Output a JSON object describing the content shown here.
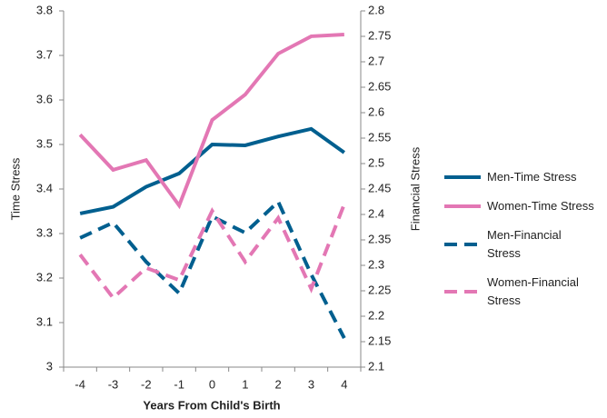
{
  "chart_data": {
    "type": "line",
    "x_label": "Years From Child's Birth",
    "y_label": "Time Stress",
    "y2_label": "Financial Stress",
    "categories": [
      "-4",
      "-3",
      "-2",
      "-1",
      "0",
      "1",
      "2",
      "3",
      "4"
    ],
    "ylim": [
      3,
      3.8
    ],
    "yticks": [
      3,
      3.1,
      3.2,
      3.3,
      3.4,
      3.5,
      3.6,
      3.7,
      3.8
    ],
    "y2lim": [
      2.1,
      2.8
    ],
    "y2ticks": [
      2.1,
      2.15,
      2.2,
      2.25,
      2.3,
      2.35,
      2.4,
      2.45,
      2.5,
      2.55,
      2.6,
      2.65,
      2.7,
      2.75,
      2.8
    ],
    "series": [
      {
        "name": "Men-Time Stress",
        "color": "#005f8f",
        "dash": false,
        "values": [
          3.345,
          3.36,
          3.405,
          3.435,
          3.5,
          3.498,
          3.518,
          3.535,
          3.482
        ]
      },
      {
        "name": "Women-Time Stress",
        "color": "#e377b4",
        "dash": false,
        "values": [
          3.522,
          3.443,
          3.465,
          3.363,
          3.555,
          3.612,
          3.704,
          3.743,
          3.747
        ]
      },
      {
        "name": "Men-Financial Stress",
        "color": "#005f8f",
        "dash": true,
        "axis": "y2",
        "values": [
          2.354,
          2.384,
          2.307,
          2.245,
          2.396,
          2.364,
          2.425,
          2.282,
          2.157
        ]
      },
      {
        "name": "Women-Financial Stress",
        "color": "#e377b4",
        "dash": true,
        "axis": "y2",
        "values": [
          2.321,
          2.236,
          2.295,
          2.271,
          2.407,
          2.307,
          2.393,
          2.254,
          2.42
        ]
      }
    ]
  }
}
